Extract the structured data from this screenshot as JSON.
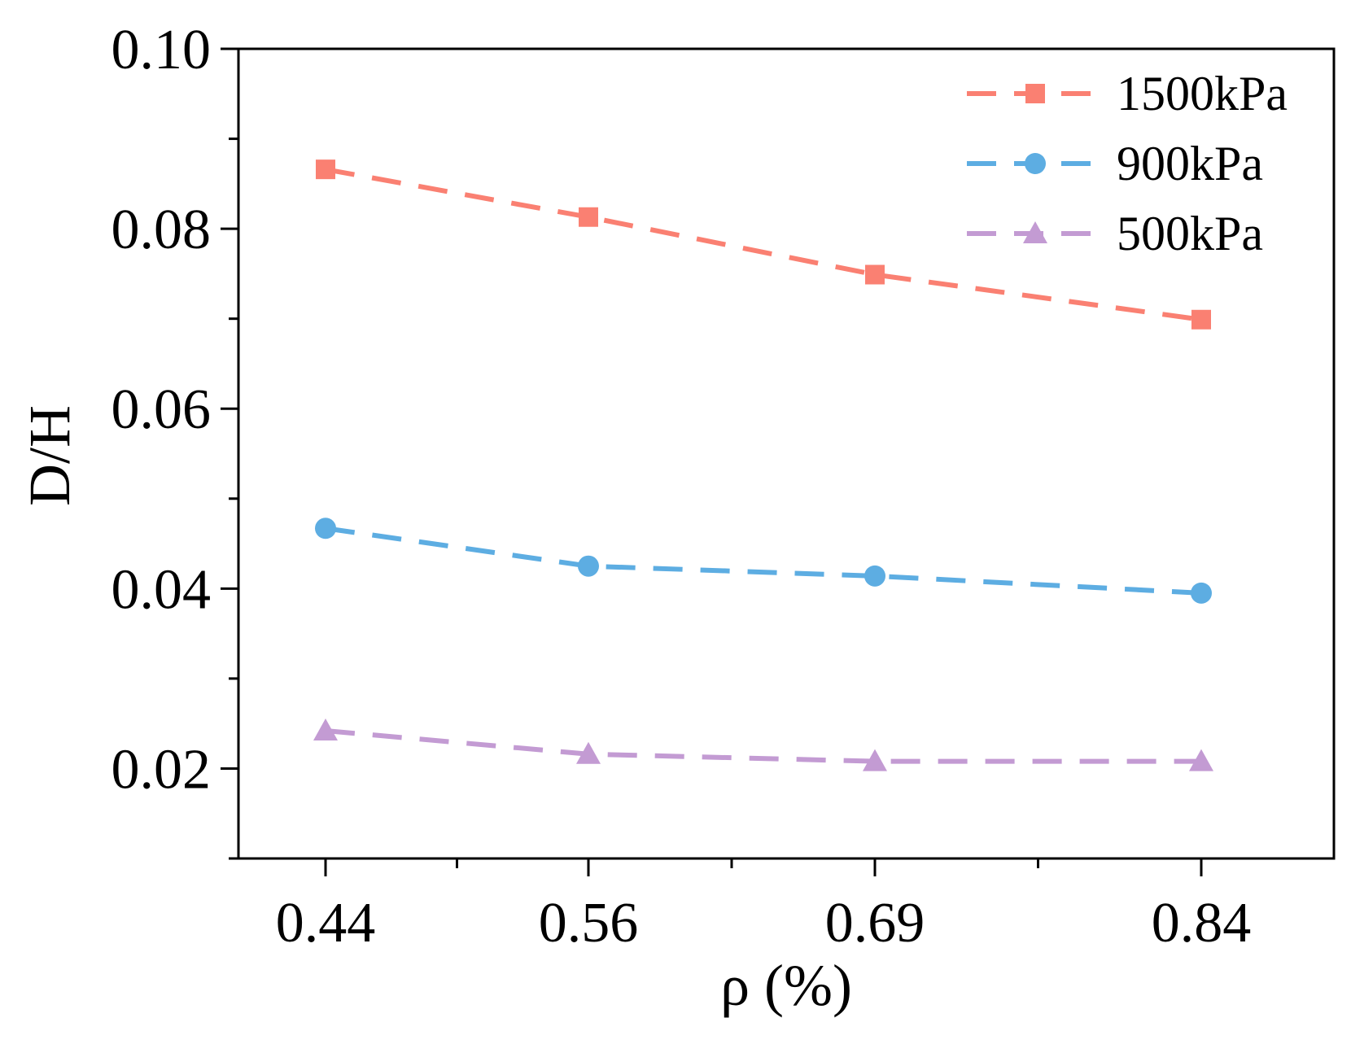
{
  "chart_data": {
    "type": "line",
    "title": "",
    "xlabel": "ρ (%)",
    "ylabel": "D/H",
    "categories": [
      "0.44",
      "0.56",
      "0.69",
      "0.84"
    ],
    "x": [
      0.44,
      0.56,
      0.69,
      0.84
    ],
    "ylim": [
      0.01,
      0.1
    ],
    "xlim": [
      0.4,
      0.9
    ],
    "yticks": [
      0.02,
      0.04,
      0.06,
      0.08,
      0.1
    ],
    "ytick_labels": [
      "0.02",
      "0.04",
      "0.06",
      "0.08",
      "0.10"
    ],
    "grid": false,
    "legend_position": "top-right",
    "series": [
      {
        "name": "1500kPa",
        "values": [
          0.0866,
          0.0813,
          0.0749,
          0.0699
        ],
        "color": "#fa8072",
        "marker": "square",
        "line_style": "dashed"
      },
      {
        "name": "900kPa",
        "values": [
          0.0467,
          0.0425,
          0.0414,
          0.0395
        ],
        "color": "#5dade2",
        "marker": "circle",
        "line_style": "dashed"
      },
      {
        "name": "500kPa",
        "values": [
          0.0242,
          0.0216,
          0.0208,
          0.0208
        ],
        "color": "#c39bd3",
        "marker": "triangle",
        "line_style": "dashed"
      }
    ]
  }
}
